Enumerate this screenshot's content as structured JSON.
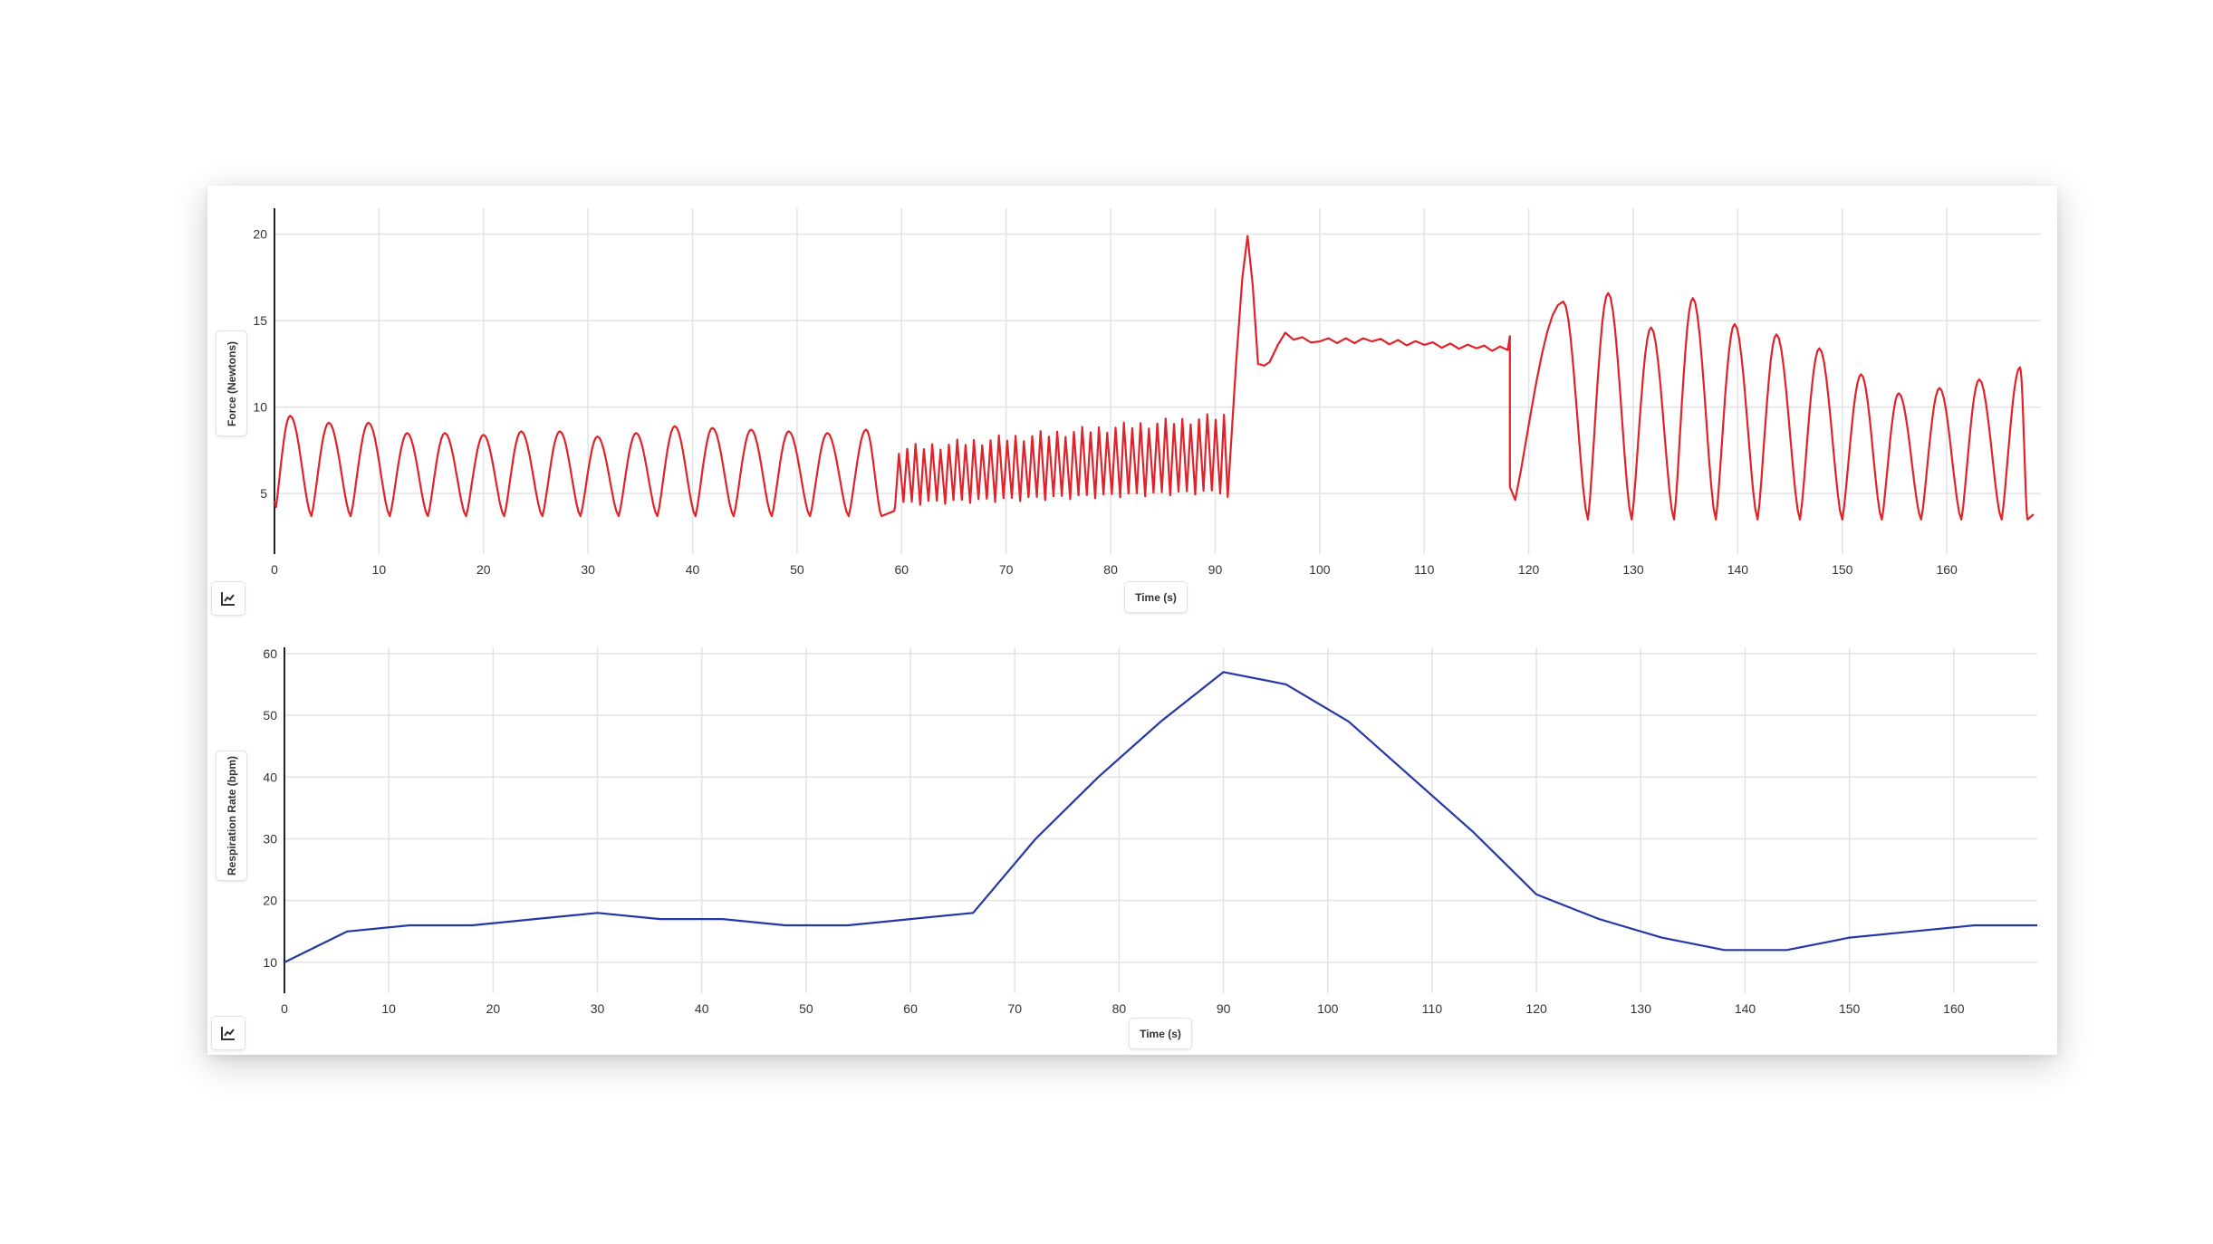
{
  "chart_data": [
    {
      "type": "line",
      "title": "",
      "xlabel": "Time (s)",
      "ylabel": "Force (Newtons)",
      "xlim": [
        0,
        169
      ],
      "ylim": [
        1.5,
        21.5
      ],
      "x_ticks": [
        0,
        10,
        20,
        30,
        40,
        50,
        60,
        70,
        80,
        90,
        100,
        110,
        120,
        130,
        140,
        150,
        160
      ],
      "y_ticks": [
        5,
        10,
        15,
        20
      ],
      "grid": true,
      "color": "#e0222a",
      "segments": [
        {
          "x_start": 0,
          "x_end": 59.3,
          "min": 3.7,
          "peaks": [
            [
              1.5,
              9.5
            ],
            [
              5.2,
              9.1
            ],
            [
              9.0,
              9.1
            ],
            [
              12.7,
              8.5
            ],
            [
              16.3,
              8.5
            ],
            [
              20.0,
              8.4
            ],
            [
              23.6,
              8.6
            ],
            [
              27.3,
              8.6
            ],
            [
              30.9,
              8.3
            ],
            [
              34.6,
              8.5
            ],
            [
              38.3,
              8.9
            ],
            [
              41.9,
              8.8
            ],
            [
              45.6,
              8.7
            ],
            [
              49.2,
              8.6
            ],
            [
              52.9,
              8.5
            ],
            [
              56.6,
              8.7
            ]
          ]
        },
        {
          "x_start": 59.3,
          "x_end": 91.2,
          "fast_oscillation": true,
          "cycles": 40,
          "min_start": 4.5,
          "max_start": 7.3,
          "min_end": 5.2,
          "max_end": 9.2
        },
        {
          "x_start": 91.2,
          "x_end": 118.0,
          "points": [
            [
              91.2,
              4.8
            ],
            [
              92.0,
              12.5
            ],
            [
              92.6,
              17.5
            ],
            [
              93.1,
              19.9
            ],
            [
              93.6,
              17.0
            ],
            [
              94.1,
              12.5
            ],
            [
              94.7,
              12.4
            ],
            [
              95.2,
              12.6
            ],
            [
              96.0,
              13.6
            ],
            [
              96.7,
              14.3
            ],
            [
              97.5,
              13.9
            ],
            [
              100,
              13.8
            ],
            [
              105,
              13.8
            ],
            [
              110,
              13.6
            ],
            [
              115,
              13.4
            ],
            [
              118.0,
              13.3
            ],
            [
              118.2,
              14.1
            ]
          ]
        },
        {
          "x_start": 118.2,
          "x_end": 168.3,
          "min": 3.5,
          "peaks": [
            [
              123.3,
              16.1
            ],
            [
              127.6,
              16.6
            ],
            [
              131.7,
              14.6
            ],
            [
              135.7,
              16.3
            ],
            [
              139.7,
              14.8
            ],
            [
              143.7,
              14.2
            ],
            [
              147.8,
              13.4
            ],
            [
              151.8,
              11.9
            ],
            [
              155.4,
              10.8
            ],
            [
              159.3,
              11.1
            ],
            [
              163.1,
              11.6
            ],
            [
              167.0,
              12.3
            ]
          ]
        }
      ]
    },
    {
      "type": "line",
      "title": "",
      "xlabel": "Time (s)",
      "ylabel": "Respiration Rate (bpm)",
      "xlim": [
        0,
        168
      ],
      "ylim": [
        5,
        61
      ],
      "x_ticks": [
        0,
        10,
        20,
        30,
        40,
        50,
        60,
        70,
        80,
        90,
        100,
        110,
        120,
        130,
        140,
        150,
        160
      ],
      "y_ticks": [
        10,
        20,
        30,
        40,
        50,
        60
      ],
      "grid": true,
      "color": "#2537a6",
      "x": [
        0,
        6,
        12,
        18,
        24,
        30,
        36,
        42,
        48,
        54,
        60,
        66,
        72,
        78,
        84,
        90,
        96,
        102,
        108,
        114,
        120,
        126,
        132,
        138,
        144,
        150,
        156,
        162,
        168
      ],
      "y": [
        10,
        15,
        16,
        16,
        17,
        18,
        17,
        17,
        16,
        16,
        17,
        18,
        30,
        40,
        49,
        57,
        55,
        49,
        40,
        31,
        21,
        17,
        14,
        12,
        12,
        14,
        15,
        16,
        16
      ]
    }
  ]
}
